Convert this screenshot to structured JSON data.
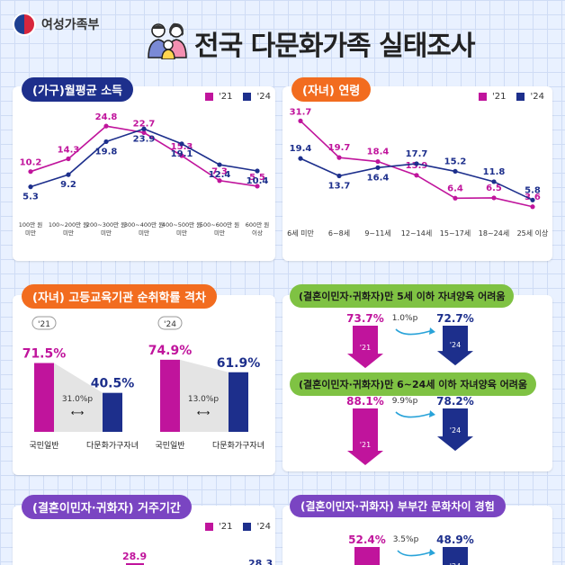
{
  "header": {
    "logo_text": "여성가족부",
    "title": "전국 다문화가족 실태조사"
  },
  "legend": {
    "y21": "'21",
    "y24": "'24"
  },
  "colors": {
    "y21": "#c0149c",
    "y24": "#1d2f8c",
    "gray": "#cccccc"
  },
  "chart_data": [
    {
      "type": "line",
      "title": "(가구)월평균 소득",
      "categories": [
        "100만 원 미만",
        "100~200만 원 미만",
        "200~300만 원 미만",
        "300~400만 원 미만",
        "400~500만 원 미만",
        "500~600만 원 미만",
        "600만 원 이상"
      ],
      "series": [
        {
          "name": "'21",
          "values": [
            10.2,
            14.3,
            24.8,
            22.7,
            15.3,
            7.3,
            5.5
          ]
        },
        {
          "name": "'24",
          "values": [
            5.3,
            9.2,
            19.8,
            23.9,
            19.1,
            12.4,
            10.4
          ]
        }
      ]
    },
    {
      "type": "line",
      "title": "(자녀) 연령",
      "categories": [
        "6세 미만",
        "6~8세",
        "9~11세",
        "12~14세",
        "15~17세",
        "18~24세",
        "25세 이상"
      ],
      "series": [
        {
          "name": "'21",
          "values": [
            31.7,
            19.7,
            18.4,
            13.9,
            6.4,
            6.5,
            3.6
          ]
        },
        {
          "name": "'24",
          "values": [
            19.4,
            13.7,
            16.4,
            17.7,
            15.2,
            11.8,
            5.8
          ]
        }
      ]
    },
    {
      "type": "bar",
      "title": "(자녀) 고등교육기관 순취학률 격차",
      "groups": [
        {
          "year": "'21",
          "categories": [
            "국민일반",
            "다문화가구자녀"
          ],
          "values": [
            71.5,
            40.5
          ],
          "gap": "31.0%p"
        },
        {
          "year": "'24",
          "categories": [
            "국민일반",
            "다문화가구자녀"
          ],
          "values": [
            74.9,
            61.9
          ],
          "gap": "13.0%p"
        }
      ]
    },
    {
      "type": "bar",
      "title": "(결혼이민자·귀화자)만 5세 이하 자녀양육 어려움",
      "categories": [
        "'21",
        "'24"
      ],
      "values": [
        73.7,
        72.7
      ],
      "change": "1.0%p"
    },
    {
      "type": "bar",
      "title": "(결혼이민자·귀화자)만 6~24세 이하 자녀양육 어려움",
      "categories": [
        "'21",
        "'24"
      ],
      "values": [
        88.1,
        78.2
      ],
      "change": "9.9%p"
    },
    {
      "type": "bar",
      "title": "(결혼이민자·귀화자) 거주기간",
      "visible_values": [
        "28.9",
        "28.3"
      ]
    },
    {
      "type": "bar",
      "title": "(결혼이민자·귀화자) 부부간 문화차이 경험",
      "categories": [
        "'21",
        "'24"
      ],
      "values": [
        52.4,
        48.9
      ],
      "change": "3.5%p"
    }
  ]
}
